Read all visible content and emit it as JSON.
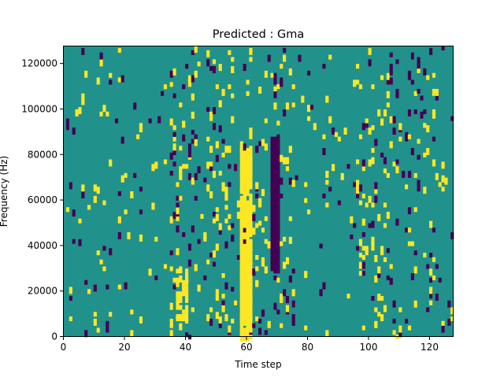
{
  "chart_data": {
    "type": "heatmap",
    "title": "Predicted : Gma",
    "xlabel": "Time step",
    "ylabel": "Frequency (Hz)",
    "xlim": [
      0,
      128
    ],
    "ylim": [
      0,
      128000
    ],
    "x_ticks": [
      0,
      20,
      40,
      60,
      80,
      100,
      120
    ],
    "y_ticks": [
      0,
      20000,
      40000,
      60000,
      80000,
      100000,
      120000
    ],
    "x_tick_labels": [
      "0",
      "20",
      "40",
      "60",
      "80",
      "100",
      "120"
    ],
    "y_tick_labels": [
      "0",
      "20000",
      "40000",
      "60000",
      "80000",
      "100000",
      "120000"
    ],
    "colormap": "viridis",
    "colors": {
      "low": "#440154",
      "mid": "#21918c",
      "high": "#fde725"
    },
    "background_value": "mid",
    "dense_bands": [
      {
        "time_range": [
          58,
          62
        ],
        "freq_range": [
          0,
          84000
        ],
        "value": "high"
      },
      {
        "time_range": [
          68,
          71
        ],
        "freq_range": [
          30000,
          88000
        ],
        "value": "low"
      }
    ],
    "scattered_columns": [
      {
        "time_range": [
          37,
          41
        ],
        "freq_range": [
          4000,
          30000
        ],
        "value": "high"
      }
    ]
  }
}
